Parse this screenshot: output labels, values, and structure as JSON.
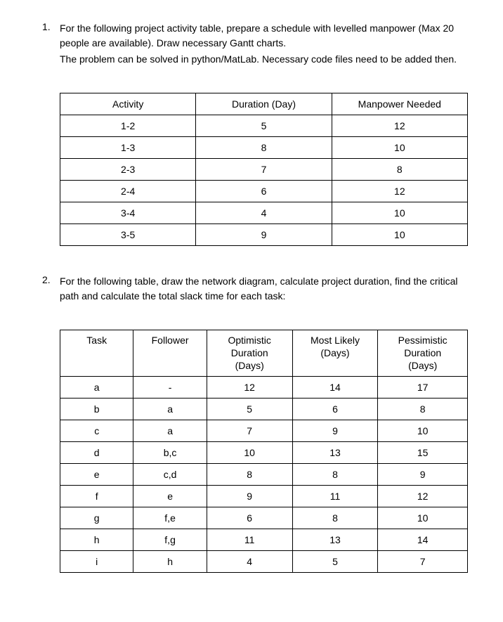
{
  "question1": {
    "number": "1.",
    "text_line1": "For the following project activity table, prepare a schedule with levelled manpower (Max 20 people are available). Draw necessary Gantt charts.",
    "text_line2": "The problem can be solved in python/MatLab. Necessary code files need to be added then.",
    "table": {
      "columns": [
        "Activity",
        "Duration (Day)",
        "Manpower Needed"
      ],
      "rows": [
        [
          "1-2",
          "5",
          "12"
        ],
        [
          "1-3",
          "8",
          "10"
        ],
        [
          "2-3",
          "7",
          "8"
        ],
        [
          "2-4",
          "6",
          "12"
        ],
        [
          "3-4",
          "4",
          "10"
        ],
        [
          "3-5",
          "9",
          "10"
        ]
      ]
    }
  },
  "question2": {
    "number": "2.",
    "text_line1": "For the following table, draw the network diagram, calculate project duration, find the critical path and calculate the total slack time for each task:",
    "table": {
      "columns": [
        "Task",
        "Follower",
        "Optimistic Duration (Days)",
        "Most Likely (Days)",
        "Pessimistic Duration (Days)"
      ],
      "col_lines": {
        "c2_l1": "Optimistic",
        "c2_l2": "Duration",
        "c2_l3": "(Days)",
        "c3_l1": "Most Likely",
        "c3_l2": "(Days)",
        "c4_l1": "Pessimistic",
        "c4_l2": "Duration",
        "c4_l3": "(Days)"
      },
      "rows": [
        [
          "a",
          "-",
          "12",
          "14",
          "17"
        ],
        [
          "b",
          "a",
          "5",
          "6",
          "8"
        ],
        [
          "c",
          "a",
          "7",
          "9",
          "10"
        ],
        [
          "d",
          "b,c",
          "10",
          "13",
          "15"
        ],
        [
          "e",
          "c,d",
          "8",
          "8",
          "9"
        ],
        [
          "f",
          "e",
          "9",
          "11",
          "12"
        ],
        [
          "g",
          "f,e",
          "6",
          "8",
          "10"
        ],
        [
          "h",
          "f,g",
          "11",
          "13",
          "14"
        ],
        [
          "i",
          "h",
          "4",
          "5",
          "7"
        ]
      ]
    }
  }
}
